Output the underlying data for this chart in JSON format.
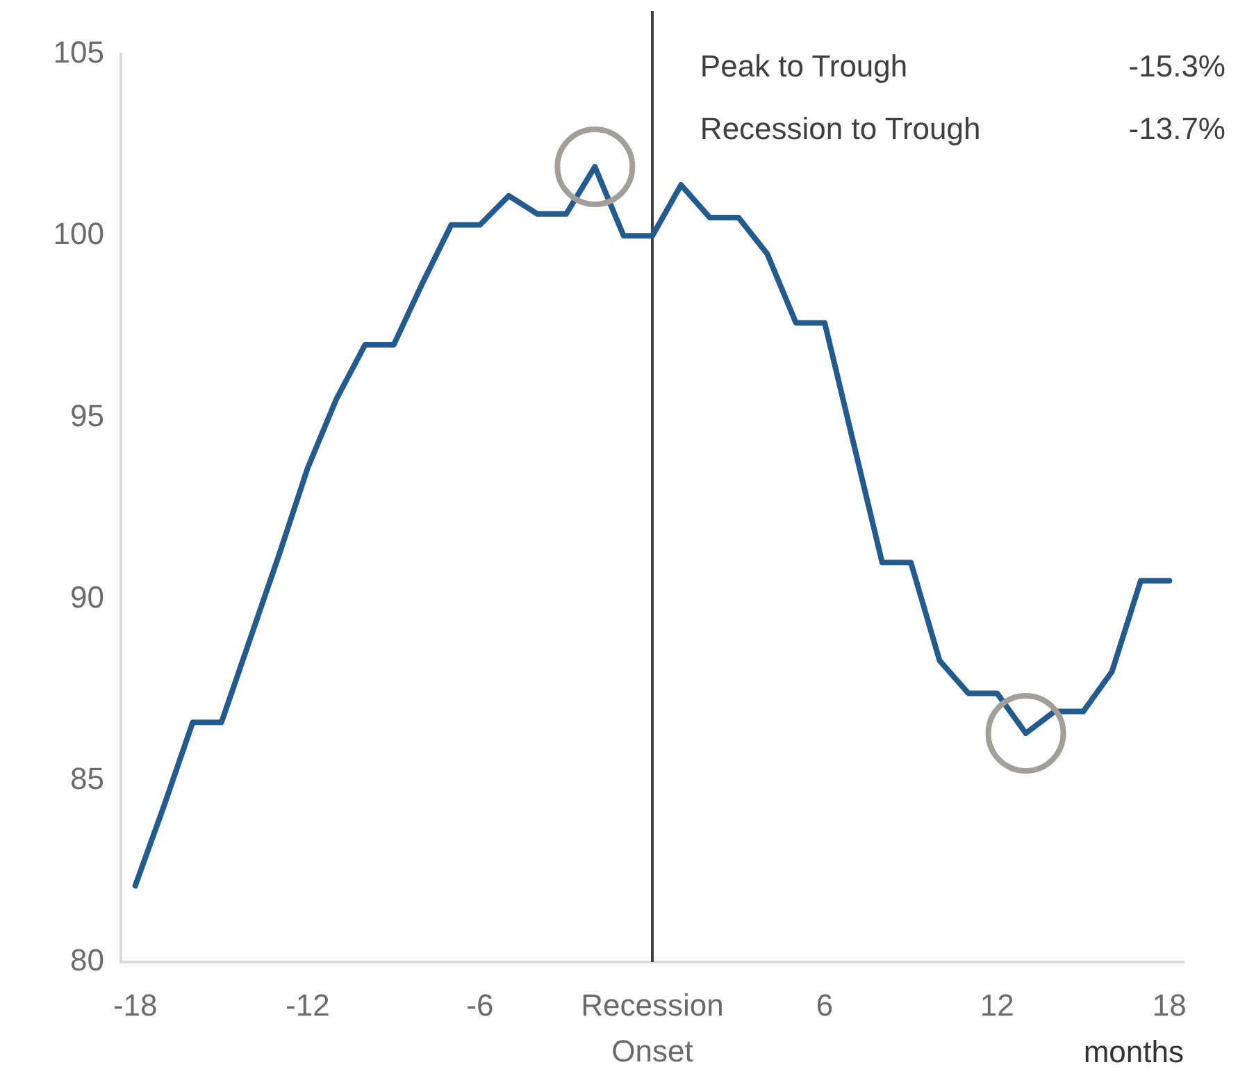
{
  "chart_data": {
    "type": "line",
    "x": [
      -18,
      -17,
      -16,
      -15,
      -14,
      -13,
      -12,
      -11,
      -10,
      -9,
      -8,
      -7,
      -6,
      -5,
      -4,
      -3,
      -2,
      -1,
      0,
      1,
      2,
      3,
      4,
      5,
      6,
      7,
      8,
      9,
      10,
      11,
      12,
      13,
      14,
      15,
      16,
      17,
      18
    ],
    "xlim": [
      -18.5,
      18.5
    ],
    "xticks": [
      -18,
      -12,
      -6,
      {
        "value": 0,
        "label": "Recession Onset"
      },
      6,
      12,
      18
    ],
    "xlabel": "months",
    "ylim": [
      80,
      105
    ],
    "yticks": [
      80,
      85,
      90,
      95,
      100,
      105
    ],
    "series": [
      {
        "color": "#245b8e",
        "values": [
          82.1,
          84.3,
          86.6,
          86.6,
          88.9,
          91.2,
          93.6,
          95.5,
          97.0,
          97.0,
          98.7,
          100.3,
          100.3,
          101.1,
          100.6,
          100.6,
          101.9,
          100.0,
          100.0,
          101.4,
          100.5,
          100.5,
          99.5,
          97.6,
          97.6,
          94.3,
          91.0,
          91.0,
          88.3,
          87.4,
          87.4,
          86.3,
          86.9,
          86.9,
          88.0,
          90.5,
          90.5
        ]
      },
      {
        "type": "scatter",
        "x": [
          -2,
          13
        ],
        "values": [
          101.9,
          86.3
        ],
        "color": "#a39e98",
        "marker": "circle"
      }
    ],
    "ref_lines": [
      {
        "axis": "x",
        "value": 0,
        "color": "#404040"
      }
    ],
    "annotations": [
      "Peak to Trough",
      "-15.3%",
      "Recession to Trough",
      "-13.7%"
    ]
  }
}
